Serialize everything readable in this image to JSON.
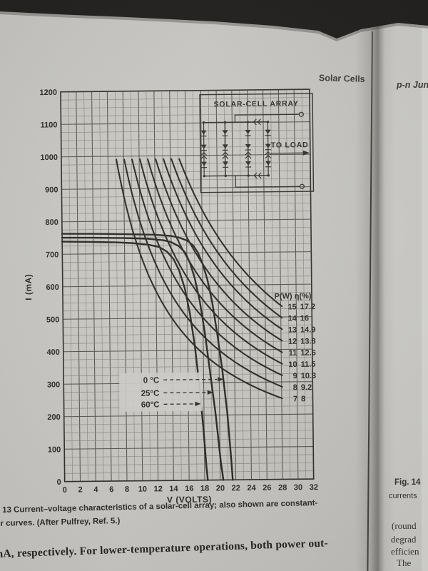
{
  "photo": {
    "left_header": "Solar Cells",
    "right_header": "p-n Jun",
    "caption_line1": "13  Current–voltage characteristics of a solar-cell array; also shown are constant-",
    "caption_line2": "er curves. (After Pulfrey, Ref. 5.)",
    "body_text": "mA, respectively. For lower-temperature operations, both power out-",
    "right_page_fragments": [
      "Fig. 14",
      "currents",
      "(round",
      "degrad",
      "efficien",
      "The"
    ]
  },
  "chart_data": {
    "type": "line",
    "title": "Current–voltage characteristics of a solar-cell array with constant-power curves",
    "xlabel": "V (VOLTS)",
    "ylabel": "I (mA)",
    "xlim": [
      0,
      32
    ],
    "ylim": [
      0,
      1200
    ],
    "x_ticks": [
      0,
      2,
      4,
      6,
      8,
      10,
      12,
      14,
      16,
      18,
      20,
      22,
      24,
      26,
      28,
      30,
      32
    ],
    "y_ticks": [
      0,
      100,
      200,
      300,
      400,
      500,
      600,
      700,
      800,
      900,
      1000,
      1100,
      1200
    ],
    "grid": {
      "minor_v_step": 1,
      "minor_i_step": 25,
      "major_v_step": 2,
      "major_i_step": 100
    },
    "iv_curves": [
      {
        "name": "0 °C",
        "isc_ma": 763,
        "voc_v": 21.6,
        "points": [
          [
            0,
            763
          ],
          [
            4,
            762
          ],
          [
            8,
            760
          ],
          [
            12,
            757
          ],
          [
            14,
            753
          ],
          [
            15,
            748
          ],
          [
            16,
            739
          ],
          [
            16.8,
            724
          ],
          [
            17.4,
            702
          ],
          [
            18,
            668
          ],
          [
            18.6,
            618
          ],
          [
            19.2,
            548
          ],
          [
            19.8,
            452
          ],
          [
            20.4,
            340
          ],
          [
            21.0,
            205
          ],
          [
            21.45,
            60
          ],
          [
            21.6,
            0
          ]
        ]
      },
      {
        "name": "25°C",
        "isc_ma": 751,
        "voc_v": 20.4,
        "points": [
          [
            0,
            751
          ],
          [
            4,
            750
          ],
          [
            8,
            748
          ],
          [
            11,
            745
          ],
          [
            13,
            740
          ],
          [
            14,
            734
          ],
          [
            15,
            721
          ],
          [
            15.8,
            701
          ],
          [
            16.4,
            669
          ],
          [
            17,
            621
          ],
          [
            17.6,
            551
          ],
          [
            18.2,
            456
          ],
          [
            18.8,
            340
          ],
          [
            19.5,
            200
          ],
          [
            20.1,
            55
          ],
          [
            20.4,
            0
          ]
        ]
      },
      {
        "name": "60°C",
        "isc_ma": 739,
        "voc_v": 18.4,
        "points": [
          [
            0,
            739
          ],
          [
            4,
            737
          ],
          [
            7,
            735
          ],
          [
            9,
            732
          ],
          [
            11,
            727
          ],
          [
            12.5,
            719
          ],
          [
            13.5,
            704
          ],
          [
            14.3,
            681
          ],
          [
            15,
            646
          ],
          [
            15.7,
            591
          ],
          [
            16.3,
            516
          ],
          [
            16.9,
            416
          ],
          [
            17.4,
            300
          ],
          [
            17.9,
            160
          ],
          [
            18.25,
            40
          ],
          [
            18.4,
            0
          ]
        ]
      }
    ],
    "power_curves": {
      "header": "P(W) η(%)",
      "model": "constant power hyperbolas I_mA = 1000·P/V, clipped at 990 mA, drawn to V ≈ 28.2",
      "i_top_ma": 990,
      "v_end": 28.2,
      "entries": [
        {
          "p": 15,
          "eta": "17.2"
        },
        {
          "p": 14,
          "eta": "16"
        },
        {
          "p": 13,
          "eta": "14.9"
        },
        {
          "p": 12,
          "eta": "13.8"
        },
        {
          "p": 11,
          "eta": "12.6"
        },
        {
          "p": 10,
          "eta": "11.5"
        },
        {
          "p": 9,
          "eta": "10.3"
        },
        {
          "p": 8,
          "eta": "9.2"
        },
        {
          "p": 7,
          "eta": "8"
        }
      ]
    },
    "temp_labels": [
      {
        "label": "0 °C",
        "i_ma": 310,
        "v_target": 20.55
      },
      {
        "label": "25°C",
        "i_ma": 270,
        "v_target": 19.2
      },
      {
        "label": "60°C",
        "i_ma": 235,
        "v_target": 17.6
      }
    ],
    "inset": {
      "title": "SOLAR-CELL ARRAY",
      "load_label": "TO LOAD",
      "parallel_strings": 4,
      "cells_per_string_shown": 3
    }
  }
}
